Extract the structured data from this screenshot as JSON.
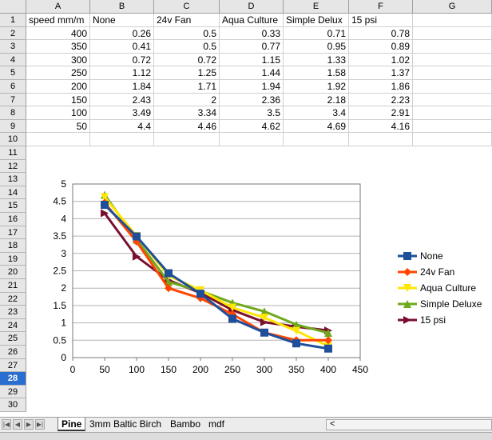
{
  "columns": [
    "A",
    "B",
    "C",
    "D",
    "E",
    "F",
    "G"
  ],
  "rows": [
    "1",
    "2",
    "3",
    "4",
    "5",
    "6",
    "7",
    "8",
    "9",
    "10",
    "11",
    "12",
    "13",
    "14",
    "15",
    "16",
    "17",
    "18",
    "19",
    "20",
    "21",
    "22",
    "23",
    "24",
    "25",
    "26",
    "27",
    "28",
    "29",
    "30"
  ],
  "selected_row": "28",
  "header_row": [
    "speed mm/m",
    "None",
    "24v Fan",
    "Aqua Culture",
    "Simple Delux",
    "15 psi",
    ""
  ],
  "table": [
    [
      "400",
      "0.26",
      "0.5",
      "0.33",
      "0.71",
      "0.78"
    ],
    [
      "350",
      "0.41",
      "0.5",
      "0.77",
      "0.95",
      "0.89"
    ],
    [
      "300",
      "0.72",
      "0.72",
      "1.15",
      "1.33",
      "1.02"
    ],
    [
      "250",
      "1.12",
      "1.25",
      "1.44",
      "1.58",
      "1.37"
    ],
    [
      "200",
      "1.84",
      "1.71",
      "1.94",
      "1.92",
      "1.86"
    ],
    [
      "150",
      "2.43",
      "2",
      "2.36",
      "2.18",
      "2.23"
    ],
    [
      "100",
      "3.49",
      "3.34",
      "3.5",
      "3.4",
      "2.91"
    ],
    [
      "50",
      "4.4",
      "4.46",
      "4.62",
      "4.69",
      "4.16"
    ]
  ],
  "tabs": [
    {
      "label": "Pine",
      "active": true
    },
    {
      "label": "3mm Baltic Birch",
      "active": false
    },
    {
      "label": "Bambo",
      "active": false
    },
    {
      "label": "mdf",
      "active": false
    }
  ],
  "nav": {
    "first": "|◀",
    "prev": "◀",
    "next": "▶",
    "last": "▶|",
    "scroll_left": "<"
  },
  "colors": {
    "None": "#1f4e9a",
    "24v Fan": "#ff4500",
    "Aqua Culture": "#ffe600",
    "Simple Deluxe": "#6fa81c",
    "15 psi": "#7a1030"
  },
  "chart_data": {
    "type": "line",
    "title": "",
    "xlabel": "",
    "ylabel": "",
    "x": [
      50,
      100,
      150,
      200,
      250,
      300,
      350,
      400
    ],
    "xlim": [
      0,
      450
    ],
    "ylim": [
      0,
      5
    ],
    "xticks": [
      "0",
      "50",
      "100",
      "150",
      "200",
      "250",
      "300",
      "350",
      "400",
      "450"
    ],
    "yticks": [
      "0",
      "0.5",
      "1",
      "1.5",
      "2",
      "2.5",
      "3",
      "3.5",
      "4",
      "4.5",
      "5"
    ],
    "grid": true,
    "legend": "right",
    "series": [
      {
        "name": "None",
        "marker": "square",
        "values": [
          4.4,
          3.49,
          2.43,
          1.84,
          1.12,
          0.72,
          0.41,
          0.26
        ]
      },
      {
        "name": "24v Fan",
        "marker": "diamond",
        "values": [
          4.46,
          3.34,
          2,
          1.71,
          1.25,
          0.72,
          0.5,
          0.5
        ]
      },
      {
        "name": "Aqua Culture",
        "marker": "triangle-down",
        "values": [
          4.62,
          3.5,
          2.36,
          1.94,
          1.44,
          1.15,
          0.77,
          0.33
        ]
      },
      {
        "name": "Simple Deluxe",
        "marker": "triangle-up",
        "values": [
          4.69,
          3.4,
          2.18,
          1.92,
          1.58,
          1.33,
          0.95,
          0.71
        ]
      },
      {
        "name": "15 psi",
        "marker": "triangle-right",
        "values": [
          4.16,
          2.91,
          2.23,
          1.86,
          1.37,
          1.02,
          0.89,
          0.78
        ]
      }
    ]
  }
}
